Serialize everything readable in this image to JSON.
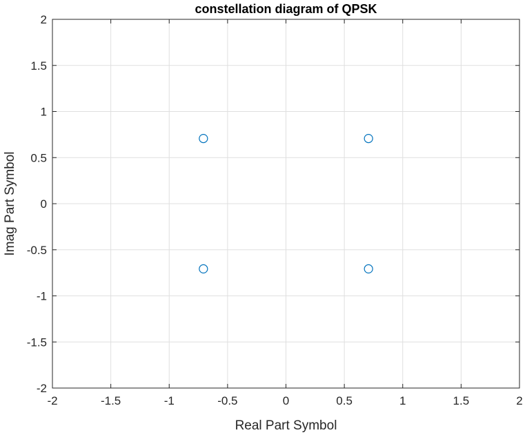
{
  "chart_data": {
    "type": "scatter",
    "title": "constellation diagram of QPSK",
    "xlabel": "Real Part Symbol",
    "ylabel": "Imag Part Symbol",
    "xlim": [
      -2,
      2
    ],
    "ylim": [
      -2,
      2
    ],
    "xticks": [
      -2,
      -1.5,
      -1,
      -0.5,
      0,
      0.5,
      1,
      1.5,
      2
    ],
    "yticks": [
      -2,
      -1.5,
      -1,
      -0.5,
      0,
      0.5,
      1,
      1.5,
      2
    ],
    "xtick_labels": [
      "-2",
      "-1.5",
      "-1",
      "-0.5",
      "0",
      "0.5",
      "1",
      "1.5",
      "2"
    ],
    "ytick_labels": [
      "-2",
      "-1.5",
      "-1",
      "-0.5",
      "0",
      "0.5",
      "1",
      "1.5",
      "2"
    ],
    "grid": true,
    "marker": "circle",
    "marker_color": "#0072BD",
    "points": [
      {
        "x": -0.707,
        "y": 0.707
      },
      {
        "x": 0.707,
        "y": 0.707
      },
      {
        "x": -0.707,
        "y": -0.707
      },
      {
        "x": 0.707,
        "y": -0.707
      }
    ]
  }
}
